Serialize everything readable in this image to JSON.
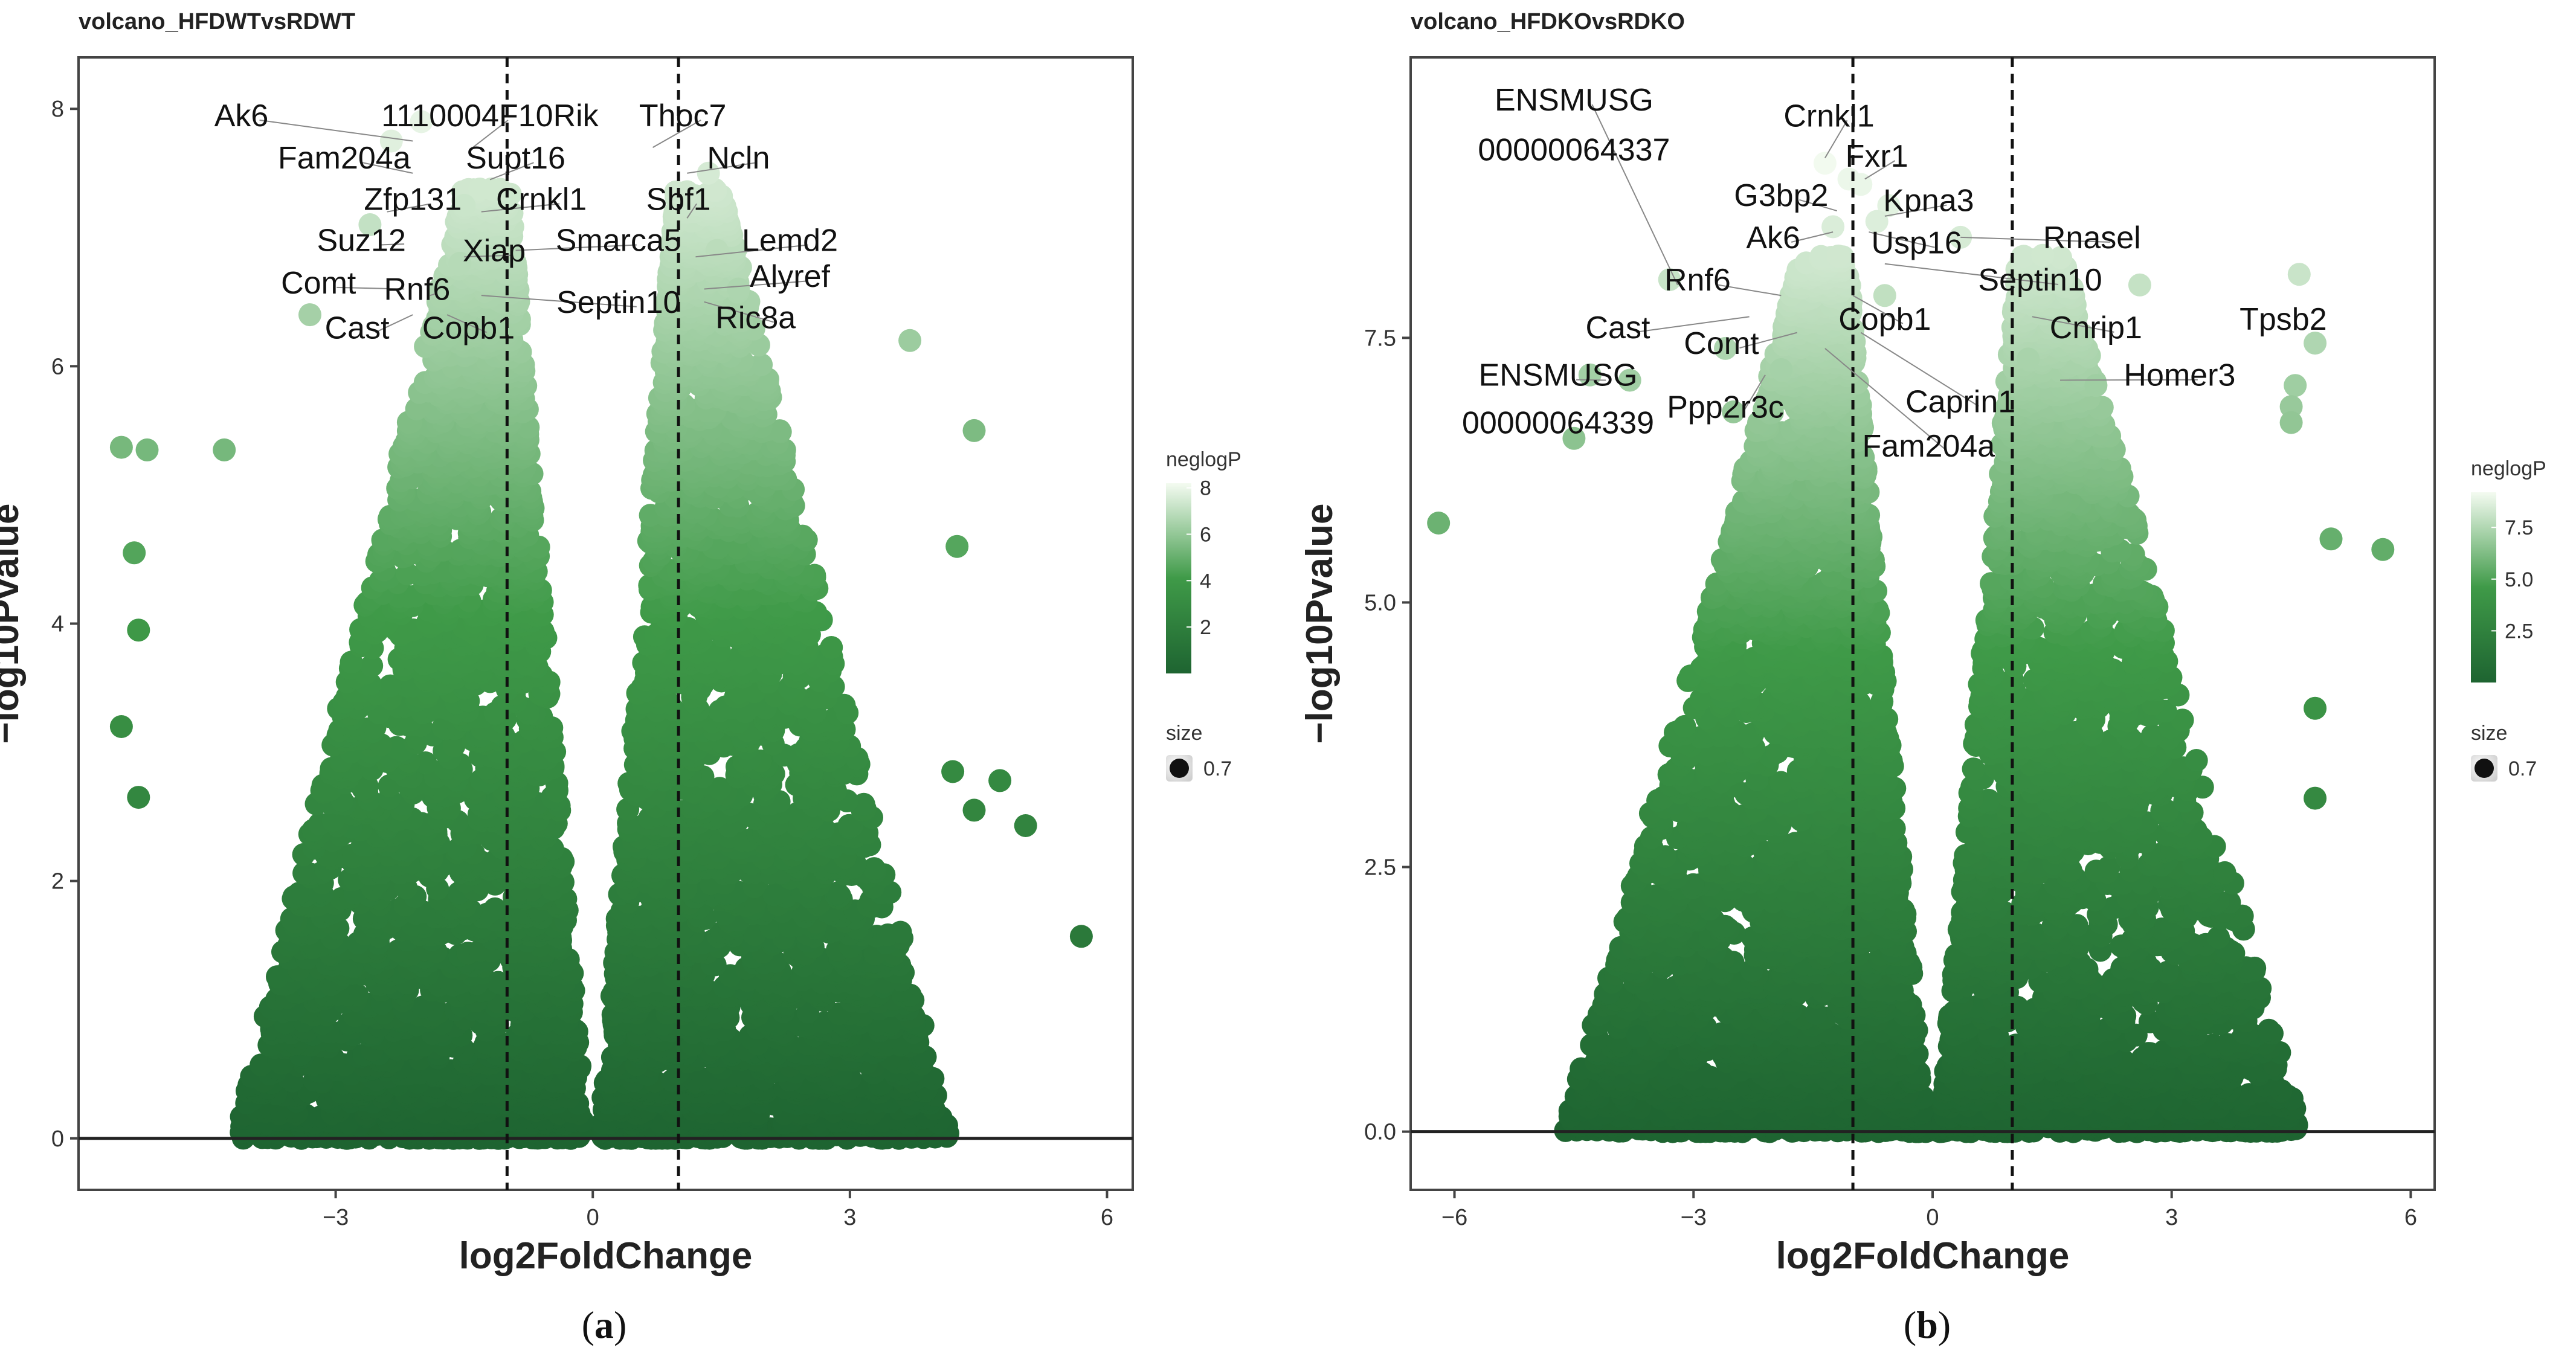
{
  "colors": {
    "dark": "#1e6431",
    "mid": "#3f9a48",
    "light": "#c2e7b8",
    "pale": "#f4fbf1"
  },
  "chart_data": [
    {
      "type": "scatter",
      "title": "volcano_HFDWTvsRDWT",
      "xlabel": "log2FoldChange",
      "ylabel": "−log10Pvalue",
      "xlim": [
        -6.0,
        6.3
      ],
      "ylim": [
        -0.4,
        8.4
      ],
      "x_ticks": [
        -3,
        0,
        3,
        6
      ],
      "x_tick_labels": [
        "−3",
        "0",
        "3",
        "6"
      ],
      "y_ticks": [
        0,
        2,
        4,
        6,
        8
      ],
      "y_tick_labels": [
        "0",
        "2",
        "4",
        "6",
        "8"
      ],
      "fc_thresholds": [
        -1,
        1
      ],
      "legend_color_title": "neglogP",
      "legend_color_ticks": [
        2,
        4,
        6,
        8
      ],
      "legend_color_tick_labels": [
        "2",
        "4",
        "6",
        "8"
      ],
      "legend_color_range": [
        0,
        8.2
      ],
      "legend_size_title": "size",
      "legend_size_label": "0.7",
      "caption": "a",
      "outliers": [
        [
          5.7,
          1.57
        ],
        [
          5.05,
          2.43
        ],
        [
          4.75,
          2.78
        ],
        [
          4.2,
          2.85
        ],
        [
          4.45,
          2.55
        ],
        [
          3.7,
          6.2
        ],
        [
          4.45,
          5.5
        ],
        [
          4.25,
          4.6
        ],
        [
          -5.2,
          5.35
        ],
        [
          -5.5,
          5.37
        ],
        [
          -5.35,
          4.55
        ],
        [
          -5.3,
          3.95
        ],
        [
          -5.5,
          3.2
        ],
        [
          -5.3,
          2.65
        ],
        [
          -4.3,
          5.35
        ],
        [
          -3.3,
          6.4
        ],
        [
          -2.35,
          7.75
        ],
        [
          -2.0,
          7.9
        ],
        [
          -2.6,
          7.1
        ],
        [
          -1.5,
          7.25
        ],
        [
          -1.55,
          6.8
        ],
        [
          1.35,
          7.5
        ],
        [
          1.45,
          6.9
        ],
        [
          1.7,
          6.6
        ]
      ],
      "labels": [
        {
          "text": "Ak6",
          "x": -4.1,
          "y": 7.95,
          "px": -2.1,
          "py": 7.75
        },
        {
          "text": "1110004F10Rik",
          "x": -1.2,
          "y": 7.95,
          "px": -1.4,
          "py": 7.7
        },
        {
          "text": "Thoc7",
          "x": 1.05,
          "y": 7.95,
          "px": 0.7,
          "py": 7.7
        },
        {
          "text": "Fam204a",
          "x": -2.9,
          "y": 7.62,
          "px": -2.1,
          "py": 7.5
        },
        {
          "text": "Supt16",
          "x": -0.9,
          "y": 7.62,
          "px": -1.2,
          "py": 7.45
        },
        {
          "text": "Ncln",
          "x": 1.7,
          "y": 7.62,
          "px": 1.1,
          "py": 7.5
        },
        {
          "text": "Zfp131",
          "x": -2.1,
          "y": 7.3,
          "px": -2.4,
          "py": 7.2
        },
        {
          "text": "Crnkl1",
          "x": -0.6,
          "y": 7.3,
          "px": -1.3,
          "py": 7.2
        },
        {
          "text": "Sbf1",
          "x": 1.0,
          "y": 7.3,
          "px": 1.1,
          "py": 7.15
        },
        {
          "text": "Suz12",
          "x": -2.7,
          "y": 6.98,
          "px": -2.2,
          "py": 6.95
        },
        {
          "text": "Smarca5",
          "x": 0.3,
          "y": 6.98,
          "px": -0.9,
          "py": 6.9
        },
        {
          "text": "Lemd2",
          "x": 2.3,
          "y": 6.98,
          "px": 1.2,
          "py": 6.85
        },
        {
          "text": "Xiap",
          "x": -1.15,
          "y": 6.9,
          "px": -1.5,
          "py": 6.85
        },
        {
          "text": "Comt",
          "x": -3.2,
          "y": 6.65,
          "px": -2.2,
          "py": 6.6
        },
        {
          "text": "Rnf6",
          "x": -2.05,
          "y": 6.6,
          "px": -1.9,
          "py": 6.55
        },
        {
          "text": "Alyref",
          "x": 2.3,
          "y": 6.7,
          "px": 1.3,
          "py": 6.6
        },
        {
          "text": "Septin10",
          "x": 0.3,
          "y": 6.5,
          "px": -1.3,
          "py": 6.55
        },
        {
          "text": "Ric8a",
          "x": 1.9,
          "y": 6.38,
          "px": 1.3,
          "py": 6.5
        },
        {
          "text": "Cast",
          "x": -2.75,
          "y": 6.3,
          "px": -2.1,
          "py": 6.4
        },
        {
          "text": "Copb1",
          "x": -1.45,
          "y": 6.3,
          "px": -1.7,
          "py": 6.4
        }
      ]
    },
    {
      "type": "scatter",
      "title": "volcano_HFDKOvsRDKO",
      "xlabel": "log2FoldChange",
      "ylabel": "−log10Pvalue",
      "xlim": [
        -6.55,
        6.3
      ],
      "ylim": [
        -0.55,
        10.15
      ],
      "x_ticks": [
        -6,
        -3,
        0,
        3,
        6
      ],
      "x_tick_labels": [
        "−6",
        "−3",
        "0",
        "3",
        "6"
      ],
      "y_ticks": [
        0,
        2.5,
        5,
        7.5
      ],
      "y_tick_labels": [
        "0.0",
        "2.5",
        "5.0",
        "7.5"
      ],
      "fc_thresholds": [
        -1,
        1
      ],
      "legend_color_title": "neglogP",
      "legend_color_ticks": [
        2.5,
        5,
        7.5
      ],
      "legend_color_tick_labels": [
        "2.5",
        "5.0",
        "7.5"
      ],
      "legend_color_range": [
        0,
        9.2
      ],
      "legend_size_title": "size",
      "legend_size_label": "0.7",
      "caption": "b",
      "outliers": [
        [
          -6.2,
          5.75
        ],
        [
          -3.3,
          8.05
        ],
        [
          -4.3,
          7.15
        ],
        [
          -3.8,
          7.1
        ],
        [
          -3.7,
          0.9
        ],
        [
          -4.5,
          6.55
        ],
        [
          4.6,
          8.1
        ],
        [
          4.8,
          7.45
        ],
        [
          4.55,
          7.05
        ],
        [
          4.5,
          6.85
        ],
        [
          4.5,
          6.7
        ],
        [
          5.65,
          5.5
        ],
        [
          5.0,
          5.6
        ],
        [
          4.8,
          4.0
        ],
        [
          4.8,
          3.15
        ],
        [
          2.6,
          8.0
        ],
        [
          2.05,
          7.05
        ],
        [
          1.2,
          7.3
        ],
        [
          -1.35,
          9.15
        ],
        [
          -1.05,
          9.0
        ],
        [
          -0.9,
          8.95
        ],
        [
          -0.55,
          8.75
        ],
        [
          -1.25,
          8.55
        ],
        [
          0.35,
          8.45
        ],
        [
          -0.7,
          8.6
        ],
        [
          -2.6,
          7.4
        ],
        [
          -1.9,
          7.2
        ],
        [
          -2.5,
          6.8
        ],
        [
          -0.6,
          7.9
        ]
      ],
      "labels": [
        {
          "text": "ENSMUSG",
          "x": -4.5,
          "y": 9.75,
          "px": -3.2,
          "py": 8.0
        },
        {
          "text": "00000064337",
          "x": -4.5,
          "y": 9.28,
          "px": "",
          "py": ""
        },
        {
          "text": "Crnkl1",
          "x": -1.3,
          "y": 9.6,
          "px": -1.35,
          "py": 9.2
        },
        {
          "text": "Fxr1",
          "x": -0.7,
          "y": 9.22,
          "px": -0.85,
          "py": 9.0
        },
        {
          "text": "G3bp2",
          "x": -1.9,
          "y": 8.85,
          "px": -1.2,
          "py": 8.7
        },
        {
          "text": "Kpna3",
          "x": -0.05,
          "y": 8.8,
          "px": -0.6,
          "py": 8.65
        },
        {
          "text": "Ak6",
          "x": -2.0,
          "y": 8.45,
          "px": -1.25,
          "py": 8.5
        },
        {
          "text": "Usp16",
          "x": -0.2,
          "y": 8.4,
          "px": -0.8,
          "py": 8.5
        },
        {
          "text": "Rnasel",
          "x": 2.0,
          "y": 8.45,
          "px": 0.35,
          "py": 8.45
        },
        {
          "text": "Septin10",
          "x": 1.35,
          "y": 8.05,
          "px": -0.6,
          "py": 8.2
        },
        {
          "text": "Rnf6",
          "x": -2.95,
          "y": 8.05,
          "px": -1.9,
          "py": 7.9
        },
        {
          "text": "Copb1",
          "x": -0.6,
          "y": 7.68,
          "px": -1.0,
          "py": 7.9
        },
        {
          "text": "Cnrip1",
          "x": 2.05,
          "y": 7.6,
          "px": 1.25,
          "py": 7.7
        },
        {
          "text": "Tpsb2",
          "x": 4.4,
          "y": 7.68,
          "px": "",
          "py": ""
        },
        {
          "text": "Cast",
          "x": -3.95,
          "y": 7.6,
          "px": -2.3,
          "py": 7.7
        },
        {
          "text": "Comt",
          "x": -2.65,
          "y": 7.45,
          "px": -1.7,
          "py": 7.55
        },
        {
          "text": "Homer3",
          "x": 3.1,
          "y": 7.15,
          "px": 1.6,
          "py": 7.1
        },
        {
          "text": "ENSMUSG",
          "x": -4.7,
          "y": 7.15,
          "px": -4.1,
          "py": 7.1
        },
        {
          "text": "Ppp2r3c",
          "x": -2.6,
          "y": 6.85,
          "px": -2.1,
          "py": 7.15
        },
        {
          "text": "Caprin1",
          "x": 0.35,
          "y": 6.9,
          "px": -0.9,
          "py": 7.55
        },
        {
          "text": "00000064339",
          "x": -4.7,
          "y": 6.7,
          "px": "",
          "py": ""
        },
        {
          "text": "Fam204a",
          "x": -0.05,
          "y": 6.48,
          "px": -1.35,
          "py": 7.4
        }
      ]
    }
  ]
}
